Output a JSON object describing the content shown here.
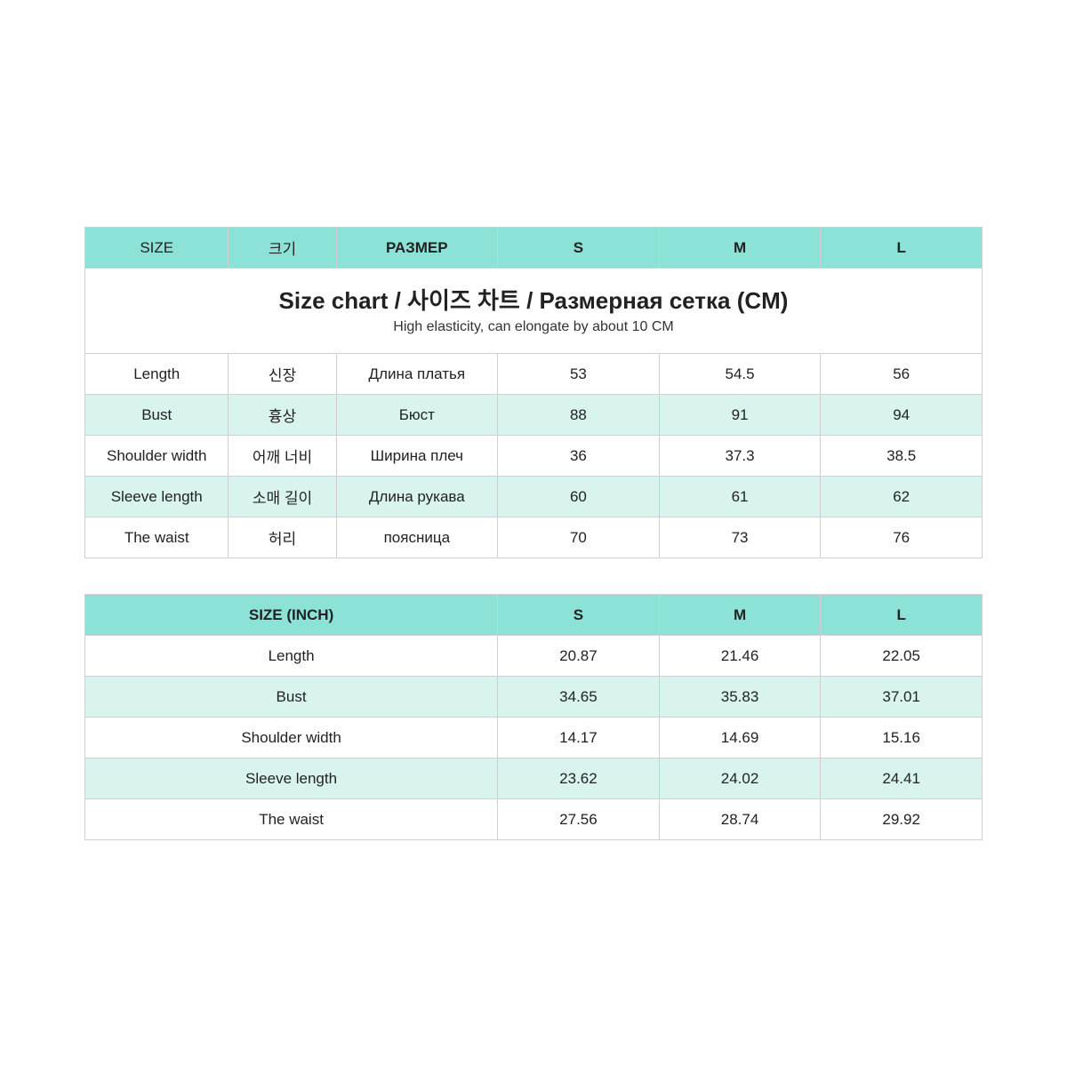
{
  "colors": {
    "header_bg": "#8ce2d6",
    "title_bg": "#cdf0ec",
    "row_even_bg": "#d9f3ef",
    "row_odd_bg": "#ffffff",
    "border": "#d0d0d0",
    "text": "#222222"
  },
  "table_cm": {
    "title_main": "Size chart / 사이즈 차트 / Размерная сетка  (CM)",
    "title_sub": "High elasticity, can elongate by about 10 CM",
    "headers": {
      "size_en": "SIZE",
      "size_kr": "크기",
      "size_ru": "РАЗМЕР",
      "s": "S",
      "m": "M",
      "l": "L"
    },
    "rows": [
      {
        "en": "Length",
        "kr": "신장",
        "ru": "Длина платья",
        "s": "53",
        "m": "54.5",
        "l": "56"
      },
      {
        "en": "Bust",
        "kr": "흉상",
        "ru": "Бюст",
        "s": "88",
        "m": "91",
        "l": "94"
      },
      {
        "en": "Shoulder width",
        "kr": "어깨 너비",
        "ru": "Ширина плеч",
        "s": "36",
        "m": "37.3",
        "l": "38.5"
      },
      {
        "en": "Sleeve length",
        "kr": "소매 길이",
        "ru": "Длина рукава",
        "s": "60",
        "m": "61",
        "l": "62"
      },
      {
        "en": "The waist",
        "kr": "허리",
        "ru": "поясница",
        "s": "70",
        "m": "73",
        "l": "76"
      }
    ]
  },
  "table_inch": {
    "headers": {
      "size_label": "SIZE  (INCH)",
      "s": "S",
      "m": "M",
      "l": "L"
    },
    "rows": [
      {
        "label": "Length",
        "s": "20.87",
        "m": "21.46",
        "l": "22.05"
      },
      {
        "label": "Bust",
        "s": "34.65",
        "m": "35.83",
        "l": "37.01"
      },
      {
        "label": "Shoulder width",
        "s": "14.17",
        "m": "14.69",
        "l": "15.16"
      },
      {
        "label": "Sleeve length",
        "s": "23.62",
        "m": "24.02",
        "l": "24.41"
      },
      {
        "label": "The waist",
        "s": "27.56",
        "m": "28.74",
        "l": "29.92"
      }
    ]
  }
}
